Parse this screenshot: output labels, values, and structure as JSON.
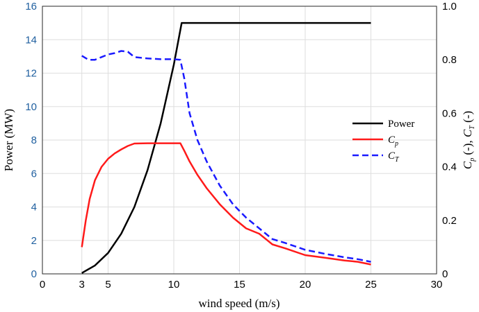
{
  "chart_data": {
    "type": "line",
    "title": "",
    "xlabel": "wind speed (m/s)",
    "ylabel_left": "Power (MW)",
    "ylabel_right": {
      "parts": [
        "C",
        "p",
        " (-), ",
        "C",
        "T",
        " (-)"
      ]
    },
    "xlim": [
      0,
      30
    ],
    "ylim_left": [
      0,
      16
    ],
    "ylim_right": [
      0,
      1.0
    ],
    "x_ticks": [
      "0",
      "3",
      "5",
      "10",
      "15",
      "20",
      "25",
      "30"
    ],
    "y_left_ticks": [
      "0",
      "2",
      "4",
      "6",
      "8",
      "10",
      "12",
      "14",
      "16"
    ],
    "y_right_ticks": [
      "0",
      "0.2",
      "0.4",
      "0.6",
      "0.8",
      "1.0"
    ],
    "grid": true,
    "legend_position": "right",
    "series": [
      {
        "name": "Power",
        "legend_label": {
          "main": "Power",
          "sub": ""
        },
        "axis": "left",
        "color": "#000000",
        "dash": "solid",
        "points": [
          [
            3,
            0.05
          ],
          [
            4,
            0.5
          ],
          [
            5,
            1.25
          ],
          [
            6,
            2.4
          ],
          [
            7,
            4.0
          ],
          [
            8,
            6.2
          ],
          [
            9,
            9.0
          ],
          [
            10,
            12.5
          ],
          [
            10.6,
            15.0
          ],
          [
            11,
            15.0
          ],
          [
            15,
            15.0
          ],
          [
            20,
            15.0
          ],
          [
            25,
            15.0
          ]
        ]
      },
      {
        "name": "Cp",
        "legend_label": {
          "main": "C",
          "sub": "p"
        },
        "axis": "right",
        "color": "#ff1a1a",
        "dash": "solid",
        "points": [
          [
            3,
            0.1
          ],
          [
            3.3,
            0.2
          ],
          [
            3.6,
            0.28
          ],
          [
            4,
            0.35
          ],
          [
            4.5,
            0.4
          ],
          [
            5,
            0.43
          ],
          [
            5.5,
            0.45
          ],
          [
            6,
            0.465
          ],
          [
            6.5,
            0.478
          ],
          [
            7,
            0.487
          ],
          [
            8,
            0.488
          ],
          [
            9,
            0.488
          ],
          [
            10,
            0.488
          ],
          [
            10.5,
            0.488
          ],
          [
            10.8,
            0.46
          ],
          [
            11.2,
            0.42
          ],
          [
            11.8,
            0.37
          ],
          [
            12.5,
            0.32
          ],
          [
            13.5,
            0.26
          ],
          [
            14.5,
            0.21
          ],
          [
            15.5,
            0.17
          ],
          [
            16.5,
            0.15
          ],
          [
            17.5,
            0.11
          ],
          [
            18.5,
            0.095
          ],
          [
            20,
            0.07
          ],
          [
            21.5,
            0.06
          ],
          [
            23,
            0.05
          ],
          [
            24,
            0.045
          ],
          [
            25,
            0.035
          ]
        ]
      },
      {
        "name": "CT",
        "legend_label": {
          "main": "C",
          "sub": "T"
        },
        "axis": "right",
        "color": "#1a1aff",
        "dash": "dashed",
        "points": [
          [
            3,
            0.815
          ],
          [
            3.5,
            0.8
          ],
          [
            4,
            0.8
          ],
          [
            4.5,
            0.81
          ],
          [
            5,
            0.82
          ],
          [
            5.5,
            0.825
          ],
          [
            6,
            0.833
          ],
          [
            6.5,
            0.83
          ],
          [
            7,
            0.81
          ],
          [
            8,
            0.805
          ],
          [
            9,
            0.802
          ],
          [
            10,
            0.802
          ],
          [
            10.5,
            0.8
          ],
          [
            10.8,
            0.73
          ],
          [
            11.2,
            0.6
          ],
          [
            11.8,
            0.5
          ],
          [
            12.5,
            0.42
          ],
          [
            13.5,
            0.33
          ],
          [
            14.5,
            0.26
          ],
          [
            15.5,
            0.21
          ],
          [
            16.5,
            0.17
          ],
          [
            17.5,
            0.13
          ],
          [
            18.5,
            0.115
          ],
          [
            20,
            0.09
          ],
          [
            21.5,
            0.075
          ],
          [
            23,
            0.062
          ],
          [
            24,
            0.055
          ],
          [
            25,
            0.045
          ]
        ]
      }
    ]
  }
}
